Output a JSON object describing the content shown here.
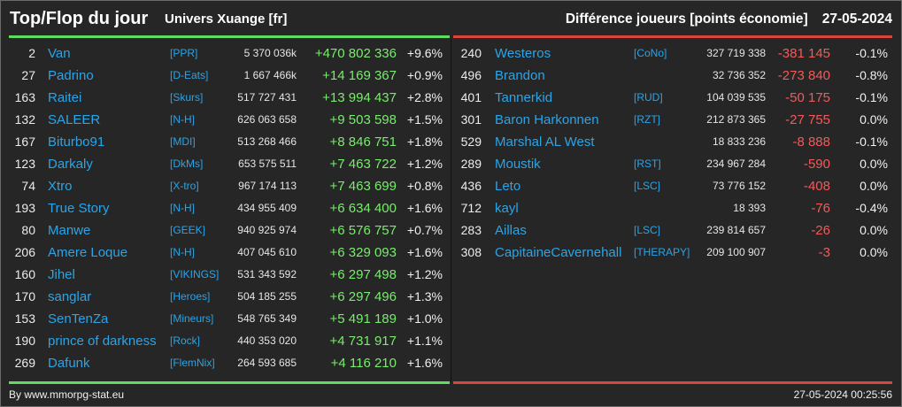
{
  "header": {
    "title": "Top/Flop du jour",
    "universe": "Univers Xuange [fr]",
    "subtitle": "Différence joueurs [points économie]",
    "date": "27-05-2024"
  },
  "colors": {
    "background": "#262626",
    "top_accent": "#5fdc5f",
    "flop_accent": "#d9453f",
    "player_link": "#2ba4e8",
    "gain": "#78ec6c",
    "loss": "#f25a5a"
  },
  "top": {
    "rows": [
      {
        "rank": "2",
        "name": "Van",
        "tag": "[PPR]",
        "points": "5 370 036k",
        "diff": "+470 802 336",
        "percent": "+9.6%"
      },
      {
        "rank": "27",
        "name": "Padrino",
        "tag": "[D-Eats]",
        "points": "1 667 466k",
        "diff": "+14 169 367",
        "percent": "+0.9%"
      },
      {
        "rank": "163",
        "name": "Raitei",
        "tag": "[Skurs]",
        "points": "517 727 431",
        "diff": "+13 994 437",
        "percent": "+2.8%"
      },
      {
        "rank": "132",
        "name": "SALEER",
        "tag": "[N-H]",
        "points": "626 063 658",
        "diff": "+9 503 598",
        "percent": "+1.5%"
      },
      {
        "rank": "167",
        "name": "Biturbo91",
        "tag": "[MDI]",
        "points": "513 268 466",
        "diff": "+8 846 751",
        "percent": "+1.8%"
      },
      {
        "rank": "123",
        "name": "Darkaly",
        "tag": "[DkMs]",
        "points": "653 575 511",
        "diff": "+7 463 722",
        "percent": "+1.2%"
      },
      {
        "rank": "74",
        "name": "Xtro",
        "tag": "[X-tro]",
        "points": "967 174 113",
        "diff": "+7 463 699",
        "percent": "+0.8%"
      },
      {
        "rank": "193",
        "name": "True Story",
        "tag": "[N-H]",
        "points": "434 955 409",
        "diff": "+6 634 400",
        "percent": "+1.6%"
      },
      {
        "rank": "80",
        "name": "Manwe",
        "tag": "[GEEK]",
        "points": "940 925 974",
        "diff": "+6 576 757",
        "percent": "+0.7%"
      },
      {
        "rank": "206",
        "name": "Amere Loque",
        "tag": "[N-H]",
        "points": "407 045 610",
        "diff": "+6 329 093",
        "percent": "+1.6%"
      },
      {
        "rank": "160",
        "name": "Jihel",
        "tag": "[VIKINGS]",
        "points": "531 343 592",
        "diff": "+6 297 498",
        "percent": "+1.2%"
      },
      {
        "rank": "170",
        "name": "sanglar",
        "tag": "[Heroes]",
        "points": "504 185 255",
        "diff": "+6 297 496",
        "percent": "+1.3%"
      },
      {
        "rank": "153",
        "name": "SenTenZa",
        "tag": "[Mineurs]",
        "points": "548 765 349",
        "diff": "+5 491 189",
        "percent": "+1.0%"
      },
      {
        "rank": "190",
        "name": "prince of darkness",
        "tag": "[Rock]",
        "points": "440 353 020",
        "diff": "+4 731 917",
        "percent": "+1.1%"
      },
      {
        "rank": "269",
        "name": "Dafunk",
        "tag": "[FlemNix]",
        "points": "264 593 685",
        "diff": "+4 116 210",
        "percent": "+1.6%"
      }
    ]
  },
  "flop": {
    "rows": [
      {
        "rank": "240",
        "name": "Westeros",
        "tag": "[CoNo]",
        "points": "327 719 338",
        "diff": "-381 145",
        "percent": "-0.1%"
      },
      {
        "rank": "496",
        "name": "Brandon",
        "points": "32 736 352",
        "diff": "-273 840",
        "percent": "-0.8%"
      },
      {
        "rank": "401",
        "name": "Tannerkid",
        "tag": "[RUD]",
        "points": "104 039 535",
        "diff": "-50 175",
        "percent": "-0.1%"
      },
      {
        "rank": "301",
        "name": "Baron Harkonnen",
        "tag": "[RZT]",
        "points": "212 873 365",
        "diff": "-27 755",
        "percent": "0.0%"
      },
      {
        "rank": "529",
        "name": "Marshal AL West",
        "points": "18 833 236",
        "diff": "-8 888",
        "percent": "-0.1%"
      },
      {
        "rank": "289",
        "name": "Moustik",
        "tag": "[RST]",
        "points": "234 967 284",
        "diff": "-590",
        "percent": "0.0%"
      },
      {
        "rank": "436",
        "name": "Leto",
        "tag": "[LSC]",
        "points": "73 776 152",
        "diff": "-408",
        "percent": "0.0%"
      },
      {
        "rank": "712",
        "name": "kayl",
        "points": "18 393",
        "diff": "-76",
        "percent": "-0.4%"
      },
      {
        "rank": "283",
        "name": "Aillas",
        "tag": "[LSC]",
        "points": "239 814 657",
        "diff": "-26",
        "percent": "0.0%"
      },
      {
        "rank": "308",
        "name": "CapitaineCavernehall",
        "tag": "[THERAPY]",
        "points": "209 100 907",
        "diff": "-3",
        "percent": "0.0%"
      }
    ]
  },
  "footer": {
    "source": "By www.mmorpg-stat.eu",
    "timestamp": "27-05-2024 00:25:56"
  }
}
